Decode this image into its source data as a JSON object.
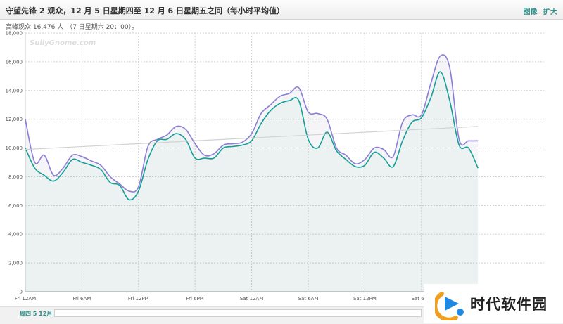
{
  "header": {
    "title": "守望先锋 2 观众，12 月 5 日星期四至 12 月 6 日星期五之间（每小时平均值）",
    "actions": [
      "图像",
      "扩大"
    ]
  },
  "subtitle": {
    "peak_label": "高峰观众 16,476 人",
    "peak_time": "（7 日星期六 20：00）。"
  },
  "chart_data": {
    "type": "area",
    "logo": "SullyGnome.com",
    "title": "",
    "xlabel": "",
    "ylabel": "",
    "ylim": [
      0,
      18000
    ],
    "yticks": [
      0,
      2000,
      4000,
      6000,
      8000,
      10000,
      12000,
      14000,
      16000,
      18000
    ],
    "ytick_labels": [
      "0",
      "2,000",
      "4,000",
      "6,000",
      "8,000",
      "10,000",
      "12,000",
      "14,000",
      "16,000",
      "18,000"
    ],
    "x_hours_range": [
      0,
      55
    ],
    "xticks": [
      {
        "label": "Fri 12AM",
        "hour": 0
      },
      {
        "label": "Fri 6AM",
        "hour": 6
      },
      {
        "label": "Fri 12PM",
        "hour": 12
      },
      {
        "label": "Fri 6PM",
        "hour": 18
      },
      {
        "label": "Sat 12AM",
        "hour": 24
      },
      {
        "label": "Sat 6AM",
        "hour": 30
      },
      {
        "label": "Sat 12PM",
        "hour": 36
      },
      {
        "label": "Sat 6PM",
        "hour": 42
      }
    ],
    "grid": true,
    "series": [
      {
        "color": "#8a7fd6",
        "values": [
          [
            0,
            12000
          ],
          [
            1,
            9000
          ],
          [
            2,
            9500
          ],
          [
            3,
            8100
          ],
          [
            4,
            8600
          ],
          [
            5,
            9500
          ],
          [
            6,
            9400
          ],
          [
            7,
            9100
          ],
          [
            8,
            8800
          ],
          [
            9,
            8000
          ],
          [
            10,
            7500
          ],
          [
            11,
            7000
          ],
          [
            12,
            7300
          ],
          [
            13,
            10100
          ],
          [
            14,
            10600
          ],
          [
            15,
            10900
          ],
          [
            16,
            11500
          ],
          [
            17,
            11300
          ],
          [
            18,
            10300
          ],
          [
            19,
            9500
          ],
          [
            20,
            9600
          ],
          [
            21,
            10200
          ],
          [
            22,
            10300
          ],
          [
            23,
            10400
          ],
          [
            24,
            11000
          ],
          [
            25,
            12400
          ],
          [
            26,
            13000
          ],
          [
            27,
            13600
          ],
          [
            28,
            13800
          ],
          [
            29,
            14200
          ],
          [
            30,
            12500
          ],
          [
            31,
            12400
          ],
          [
            32,
            12000
          ],
          [
            33,
            10000
          ],
          [
            34,
            9500
          ],
          [
            35,
            8900
          ],
          [
            36,
            9200
          ],
          [
            37,
            10000
          ],
          [
            38,
            9900
          ],
          [
            39,
            9400
          ],
          [
            40,
            11800
          ],
          [
            41,
            12300
          ],
          [
            42,
            12300
          ],
          [
            43,
            14500
          ],
          [
            44,
            16400
          ],
          [
            45,
            15600
          ],
          [
            46,
            10600
          ],
          [
            47,
            10500
          ],
          [
            48,
            10500
          ]
        ]
      },
      {
        "color": "#159e95",
        "values": [
          [
            0,
            10000
          ],
          [
            1,
            8600
          ],
          [
            2,
            8100
          ],
          [
            3,
            7700
          ],
          [
            4,
            8300
          ],
          [
            5,
            9200
          ],
          [
            6,
            9000
          ],
          [
            7,
            8800
          ],
          [
            8,
            8500
          ],
          [
            9,
            7600
          ],
          [
            10,
            7400
          ],
          [
            11,
            6400
          ],
          [
            12,
            7000
          ],
          [
            13,
            9200
          ],
          [
            14,
            10500
          ],
          [
            15,
            10600
          ],
          [
            16,
            11000
          ],
          [
            17,
            10600
          ],
          [
            18,
            9300
          ],
          [
            19,
            9300
          ],
          [
            20,
            9300
          ],
          [
            21,
            10000
          ],
          [
            22,
            10100
          ],
          [
            23,
            10200
          ],
          [
            24,
            10500
          ],
          [
            25,
            11700
          ],
          [
            26,
            12600
          ],
          [
            27,
            13100
          ],
          [
            28,
            13300
          ],
          [
            29,
            13300
          ],
          [
            30,
            10600
          ],
          [
            31,
            10000
          ],
          [
            32,
            11100
          ],
          [
            33,
            9800
          ],
          [
            34,
            9200
          ],
          [
            35,
            8700
          ],
          [
            36,
            8800
          ],
          [
            37,
            9700
          ],
          [
            38,
            9300
          ],
          [
            39,
            8700
          ],
          [
            40,
            10500
          ],
          [
            41,
            11800
          ],
          [
            42,
            12100
          ],
          [
            43,
            13500
          ],
          [
            44,
            15300
          ],
          [
            45,
            13300
          ],
          [
            46,
            10200
          ],
          [
            47,
            10000
          ],
          [
            48,
            8600
          ]
        ]
      }
    ],
    "trend": {
      "color": "#d2d2d2",
      "values": [
        [
          0,
          9900
        ],
        [
          48,
          11500
        ]
      ]
    }
  },
  "navigator": {
    "label": "周四 5 12月 24"
  },
  "watermark": {
    "text": "时代软件园"
  }
}
